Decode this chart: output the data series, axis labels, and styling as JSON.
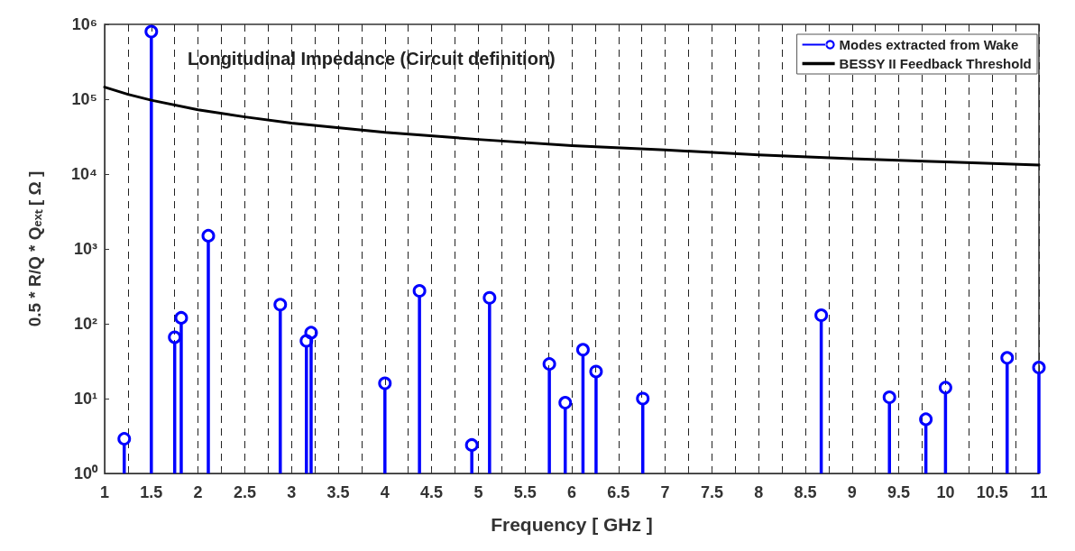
{
  "chart_data": {
    "type": "lollipop",
    "title": "Longitudinal Impedance (Circuit definition)",
    "xlabel": "Frequency [ GHz ]",
    "ylabel": "0.5 * R/Q * Qₑₓₜ [ Ω ]",
    "log": "y",
    "grid": "x",
    "legend": "top right",
    "marker": "circle",
    "xlim": [
      1,
      11
    ],
    "xticks": [
      1,
      {
        "value": 1.25,
        "label": null
      },
      1.5,
      {
        "value": 1.75,
        "label": null
      },
      2,
      {
        "value": 2.25,
        "label": null
      },
      2.5,
      {
        "value": 2.75,
        "label": null
      },
      3,
      {
        "value": 3.25,
        "label": null
      },
      3.5,
      {
        "value": 3.75,
        "label": null
      },
      4,
      {
        "value": 4.25,
        "label": null
      },
      4.5,
      {
        "value": 4.75,
        "label": null
      },
      5,
      {
        "value": 5.25,
        "label": null
      },
      5.5,
      {
        "value": 5.75,
        "label": null
      },
      6,
      {
        "value": 6.25,
        "label": null
      },
      6.5,
      {
        "value": 6.75,
        "label": null
      },
      7,
      {
        "value": 7.25,
        "label": null
      },
      7.5,
      {
        "value": 7.75,
        "label": null
      },
      8,
      {
        "value": 8.25,
        "label": null
      },
      8.5,
      {
        "value": 8.75,
        "label": null
      },
      9,
      {
        "value": 9.25,
        "label": null
      },
      9.5,
      {
        "value": 9.75,
        "label": null
      },
      10,
      {
        "value": 10.25,
        "label": null
      },
      10.5,
      {
        "value": 10.75,
        "label": null
      },
      11
    ],
    "ylim": [
      1,
      1000000
    ],
    "yticks": [
      {
        "value": 1,
        "label": "10⁰"
      },
      {
        "value": 10,
        "label": "10¹"
      },
      {
        "value": 100,
        "label": "10²"
      },
      {
        "value": 1000,
        "label": "10³"
      },
      {
        "value": 10000,
        "label": "10⁴"
      },
      {
        "value": 100000,
        "label": "10⁵"
      },
      {
        "value": 1000000,
        "label": "10⁶"
      }
    ],
    "series": [
      {
        "name": "Modes extracted from Wake",
        "color": "#0000ff",
        "x": [
          1.21,
          1.5,
          1.75,
          1.82,
          2.11,
          2.88,
          3.16,
          3.21,
          4.0,
          4.37,
          4.93,
          5.12,
          5.76,
          5.93,
          6.12,
          6.26,
          6.76,
          8.67,
          9.4,
          9.79,
          10.0,
          10.66,
          11.0
        ],
        "values": [
          2.9,
          800000,
          66,
          120,
          1500,
          180,
          59,
          76,
          16,
          275,
          2.4,
          222,
          29,
          8.8,
          45,
          23,
          10,
          130,
          10.4,
          5.3,
          14,
          35,
          26
        ]
      },
      {
        "name": "BESSY II Feedback Threshold",
        "type": "line",
        "marker": "none",
        "line_style": "solid",
        "color": "#000000",
        "x": [
          1,
          1.25,
          1.5,
          2,
          2.5,
          3,
          4,
          5,
          6,
          7,
          8,
          9,
          10,
          11
        ],
        "values": [
          145000,
          116000,
          97000,
          72000,
          58000,
          48000,
          36000,
          29000,
          24000,
          21000,
          18000,
          16000,
          14500,
          13200
        ]
      }
    ]
  }
}
